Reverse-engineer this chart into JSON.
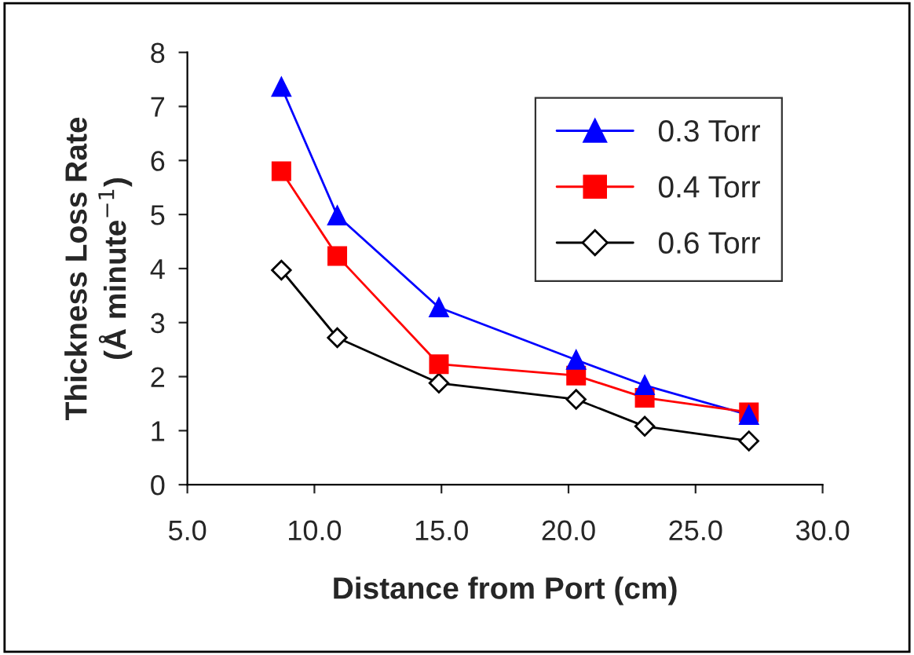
{
  "chart_data": {
    "type": "line",
    "xlabel": "Distance from Port (cm)",
    "ylabel": "Thickness Loss Rate\n(Å minute$^{−1}$)",
    "xlim": [
      5,
      30
    ],
    "xticks": [
      {
        "value": 5,
        "label": "5.0"
      },
      {
        "value": 10,
        "label": "10.0"
      },
      {
        "value": 15,
        "label": "15.0"
      },
      {
        "value": 20,
        "label": "20.0"
      },
      {
        "value": 25,
        "label": "25.0"
      },
      {
        "value": 30,
        "label": "30.0"
      }
    ],
    "ylim": [
      0,
      8
    ],
    "yticks": [
      0,
      1,
      2,
      3,
      4,
      5,
      6,
      7,
      8
    ],
    "grid": false,
    "legend": "top right",
    "line_style": "solid",
    "x": [
      8.7,
      10.9,
      14.9,
      20.3,
      23.0,
      27.1
    ],
    "series": [
      {
        "name": "0.3 Torr",
        "color": "#0000ff",
        "marker": "triangle",
        "values": [
          7.36,
          4.98,
          3.28,
          2.31,
          1.84,
          1.29
        ]
      },
      {
        "name": "0.4 Torr",
        "color": "#ff0000",
        "marker": "square",
        "values": [
          5.8,
          4.23,
          2.23,
          2.02,
          1.61,
          1.34
        ]
      },
      {
        "name": "0.6 Torr",
        "color": "#000000",
        "marker": "diamond",
        "values": [
          3.97,
          2.72,
          1.88,
          1.58,
          1.08,
          0.81
        ]
      }
    ]
  }
}
